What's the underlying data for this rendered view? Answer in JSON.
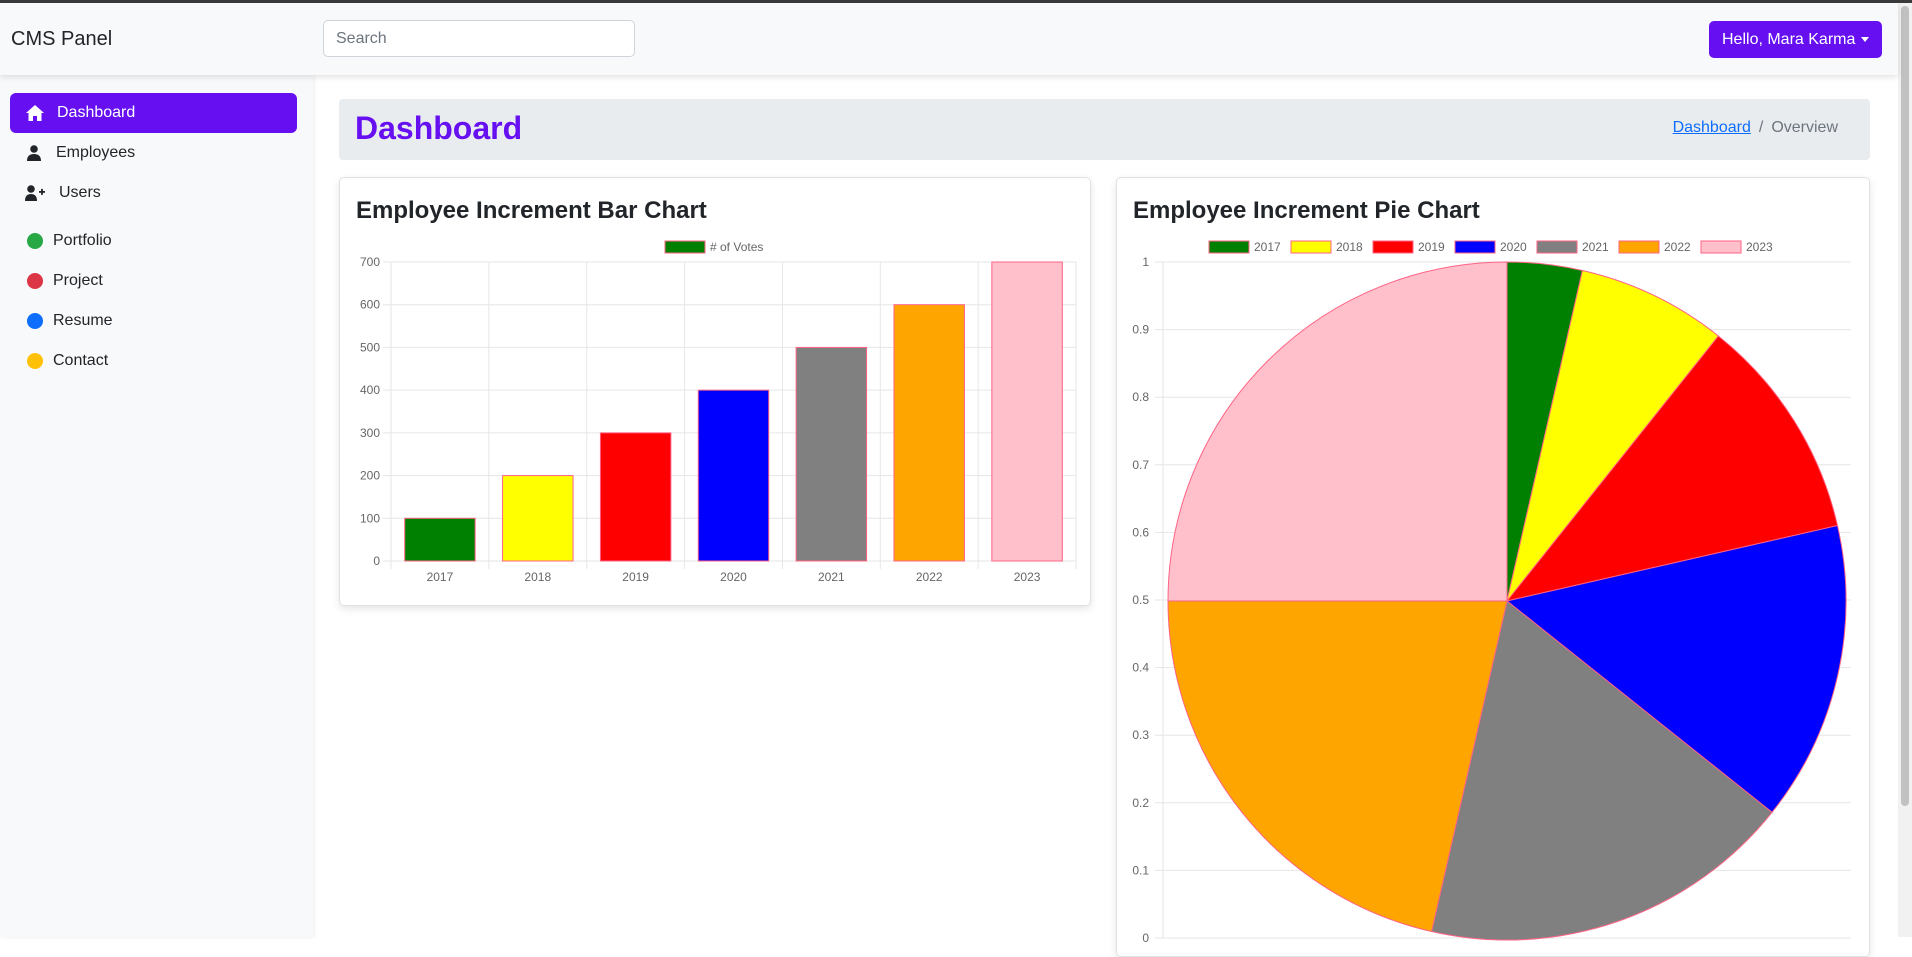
{
  "navbar": {
    "brand": "CMS Panel",
    "search_placeholder": "Search",
    "search_value": "",
    "user_label": "Hello, Mara Karma"
  },
  "sidebar": {
    "items": [
      {
        "label": "Dashboard",
        "icon": "home-icon",
        "active": true
      },
      {
        "label": "Employees",
        "icon": "user-icon",
        "active": false
      },
      {
        "label": "Users",
        "icon": "user-plus-icon",
        "active": false
      }
    ],
    "links": [
      {
        "label": "Portfolio",
        "color": "#28a745"
      },
      {
        "label": "Project",
        "color": "#dc3545"
      },
      {
        "label": "Resume",
        "color": "#0d6efd"
      },
      {
        "label": "Contact",
        "color": "#ffc107"
      }
    ]
  },
  "main": {
    "title": "Dashboard",
    "breadcrumb": {
      "link": "Dashboard",
      "separator": "/",
      "current": "Overview"
    }
  },
  "cards": {
    "bar_title": "Employee Increment Bar Chart",
    "pie_title": "Employee Increment Pie Chart"
  },
  "colors": {
    "accent": "#6610f2",
    "series": [
      "green",
      "yellow",
      "red",
      "blue",
      "gray",
      "orange",
      "pink"
    ],
    "border": "#ff6384"
  },
  "chart_data": [
    {
      "type": "bar",
      "title": "Employee Increment Bar Chart",
      "legend": "# of Votes",
      "categories": [
        "2017",
        "2018",
        "2019",
        "2020",
        "2021",
        "2022",
        "2023"
      ],
      "values": [
        100,
        200,
        300,
        400,
        500,
        600,
        700
      ],
      "colors": [
        "green",
        "yellow",
        "red",
        "blue",
        "gray",
        "orange",
        "pink"
      ],
      "ylim": [
        0,
        700
      ],
      "yticks": [
        0,
        100,
        200,
        300,
        400,
        500,
        600,
        700
      ],
      "grid": true,
      "legend_position": "top"
    },
    {
      "type": "pie",
      "title": "Employee Increment Pie Chart",
      "labels": [
        "2017",
        "2018",
        "2019",
        "2020",
        "2021",
        "2022",
        "2023"
      ],
      "values": [
        100,
        200,
        300,
        400,
        500,
        600,
        700
      ],
      "colors": [
        "green",
        "yellow",
        "red",
        "blue",
        "gray",
        "orange",
        "pink"
      ],
      "yticks": [
        "0",
        "0.1",
        "0.2",
        "0.3",
        "0.4",
        "0.5",
        "0.6",
        "0.7",
        "0.8",
        "0.9",
        "1"
      ],
      "legend_position": "top"
    }
  ]
}
